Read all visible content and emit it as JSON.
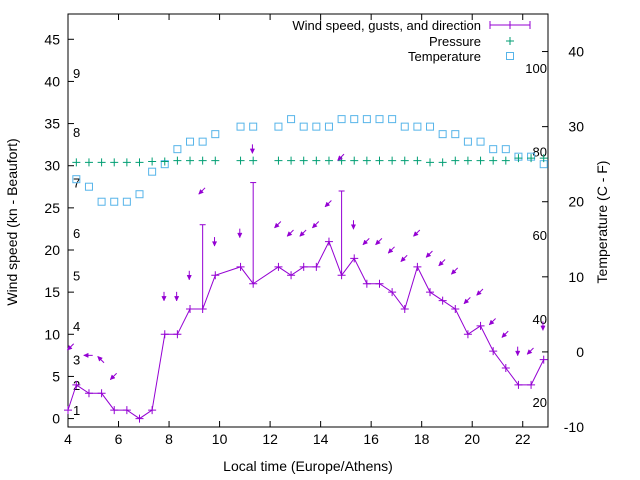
{
  "chart_data": {
    "type": "line",
    "xlabel": "Local time (Europe/Athens)",
    "ylabel": "Wind speed (kn - Beaufort)",
    "y2label": "Temperature (C - F)",
    "xlim": [
      4,
      23
    ],
    "ylim": [
      -1,
      48
    ],
    "y2lim": [
      -10,
      45
    ],
    "x_ticks": [
      4,
      6,
      8,
      10,
      12,
      14,
      16,
      18,
      20,
      22
    ],
    "y_ticks": [
      0,
      5,
      10,
      15,
      20,
      25,
      30,
      35,
      40,
      45
    ],
    "y2_ticks": [
      -10,
      0,
      10,
      20,
      30,
      40
    ],
    "beaufort_labels": [
      {
        "text": "1",
        "y": 1
      },
      {
        "text": "2",
        "y": 4
      },
      {
        "text": "3",
        "y": 7
      },
      {
        "text": "4",
        "y": 11
      },
      {
        "text": "5",
        "y": 17
      },
      {
        "text": "6",
        "y": 22
      },
      {
        "text": "7",
        "y": 28
      },
      {
        "text": "8",
        "y": 34
      },
      {
        "text": "9",
        "y": 41
      }
    ],
    "fahrenheit_labels": [
      {
        "text": "20",
        "c": -6.7
      },
      {
        "text": "40",
        "c": 4.4
      },
      {
        "text": "60",
        "c": 15.6
      },
      {
        "text": "80",
        "c": 26.7
      },
      {
        "text": "100",
        "c": 37.8
      }
    ],
    "legend": [
      "Wind speed, gusts, and direction",
      "Pressure",
      "Temperature"
    ],
    "legend_position": "top-right",
    "colors": {
      "wind": "#9400d3",
      "pressure": "#009e73",
      "temperature": "#56b4e9"
    },
    "series": [
      {
        "name": "Wind speed, gusts, and direction",
        "x": [
          4.0,
          4.33,
          4.83,
          5.33,
          5.83,
          6.33,
          6.83,
          7.33,
          7.83,
          8.33,
          8.83,
          9.33,
          9.83,
          10.83,
          11.33,
          12.33,
          12.83,
          13.33,
          13.83,
          14.33,
          14.83,
          15.33,
          15.83,
          16.33,
          16.83,
          17.33,
          17.83,
          18.33,
          18.83,
          19.33,
          19.83,
          20.33,
          20.83,
          21.33,
          21.83,
          22.33,
          22.83
        ],
        "y": [
          1,
          4,
          3,
          3,
          1,
          1,
          0,
          1,
          10,
          10,
          13,
          13,
          17,
          18,
          16,
          18,
          17,
          18,
          18,
          21,
          17,
          19,
          16,
          16,
          15,
          13,
          18,
          15,
          14,
          13,
          10,
          11,
          8,
          6,
          4,
          4,
          7
        ]
      },
      {
        "name": "Gusts",
        "x": [
          9.33,
          11.33,
          14.83
        ],
        "y": [
          23,
          28,
          27
        ]
      },
      {
        "name": "Pressure",
        "x": [
          4.33,
          4.83,
          5.33,
          5.83,
          6.33,
          6.83,
          7.33,
          7.83,
          8.33,
          8.83,
          9.33,
          9.83,
          10.83,
          11.33,
          12.33,
          12.83,
          13.33,
          13.83,
          14.33,
          14.83,
          15.33,
          15.83,
          16.33,
          16.83,
          17.33,
          17.83,
          18.33,
          18.83,
          19.33,
          19.83,
          20.33,
          20.83,
          21.33,
          21.83,
          22.33,
          22.83
        ],
        "y": [
          30.4,
          30.4,
          30.4,
          30.4,
          30.4,
          30.4,
          30.5,
          30.5,
          30.6,
          30.6,
          30.6,
          30.6,
          30.6,
          30.6,
          30.6,
          30.6,
          30.6,
          30.6,
          30.6,
          30.6,
          30.6,
          30.6,
          30.6,
          30.6,
          30.6,
          30.6,
          30.4,
          30.4,
          30.6,
          30.6,
          30.6,
          30.6,
          30.6,
          30.9,
          30.9,
          30.9
        ]
      },
      {
        "name": "Temperature",
        "x": [
          4.33,
          4.83,
          5.33,
          5.83,
          6.33,
          6.83,
          7.33,
          7.83,
          8.33,
          8.83,
          9.33,
          9.83,
          10.83,
          11.33,
          12.33,
          12.83,
          13.33,
          13.83,
          14.33,
          14.83,
          15.33,
          15.83,
          16.33,
          16.83,
          17.33,
          17.83,
          18.33,
          18.83,
          19.33,
          19.83,
          20.33,
          20.83,
          21.33,
          21.83,
          22.33,
          22.83
        ],
        "y": [
          23,
          22,
          20,
          20,
          20,
          21,
          24,
          25,
          27,
          28,
          28,
          29,
          30,
          30,
          30,
          31,
          30,
          30,
          30,
          31,
          31,
          31,
          31,
          31,
          30,
          30,
          30,
          29,
          29,
          28,
          28,
          27,
          27,
          26,
          26,
          25
        ]
      }
    ],
    "direction_arrows": [
      {
        "x": 4.1,
        "y": 8.5,
        "dir": "sw"
      },
      {
        "x": 4.8,
        "y": 7.5,
        "dir": "w"
      },
      {
        "x": 5.3,
        "y": 7.0,
        "dir": "nw"
      },
      {
        "x": 5.8,
        "y": 5.0,
        "dir": "sw"
      },
      {
        "x": 7.8,
        "y": 14.5,
        "dir": "s"
      },
      {
        "x": 8.3,
        "y": 14.5,
        "dir": "s"
      },
      {
        "x": 8.8,
        "y": 17.0,
        "dir": "s"
      },
      {
        "x": 9.3,
        "y": 27.0,
        "dir": "sw"
      },
      {
        "x": 9.8,
        "y": 21.0,
        "dir": "s"
      },
      {
        "x": 10.8,
        "y": 22.0,
        "dir": "s"
      },
      {
        "x": 11.3,
        "y": 32.0,
        "dir": "s"
      },
      {
        "x": 12.3,
        "y": 23.0,
        "dir": "sw"
      },
      {
        "x": 12.8,
        "y": 22.0,
        "dir": "sw"
      },
      {
        "x": 13.3,
        "y": 22.0,
        "dir": "sw"
      },
      {
        "x": 13.8,
        "y": 23.0,
        "dir": "sw"
      },
      {
        "x": 14.3,
        "y": 25.5,
        "dir": "sw"
      },
      {
        "x": 14.8,
        "y": 31.0,
        "dir": "sw"
      },
      {
        "x": 15.3,
        "y": 23.0,
        "dir": "s"
      },
      {
        "x": 15.8,
        "y": 21.0,
        "dir": "sw"
      },
      {
        "x": 16.3,
        "y": 21.0,
        "dir": "sw"
      },
      {
        "x": 16.8,
        "y": 20.0,
        "dir": "sw"
      },
      {
        "x": 17.3,
        "y": 19.0,
        "dir": "sw"
      },
      {
        "x": 17.8,
        "y": 22.0,
        "dir": "sw"
      },
      {
        "x": 18.3,
        "y": 19.5,
        "dir": "sw"
      },
      {
        "x": 18.8,
        "y": 18.5,
        "dir": "sw"
      },
      {
        "x": 19.3,
        "y": 17.5,
        "dir": "sw"
      },
      {
        "x": 19.8,
        "y": 14.0,
        "dir": "sw"
      },
      {
        "x": 20.3,
        "y": 15.0,
        "dir": "sw"
      },
      {
        "x": 20.8,
        "y": 11.5,
        "dir": "sw"
      },
      {
        "x": 21.3,
        "y": 10.0,
        "dir": "sw"
      },
      {
        "x": 21.8,
        "y": 8.0,
        "dir": "s"
      },
      {
        "x": 22.3,
        "y": 8.0,
        "dir": "sw"
      },
      {
        "x": 22.8,
        "y": 11.0,
        "dir": "s"
      }
    ]
  }
}
